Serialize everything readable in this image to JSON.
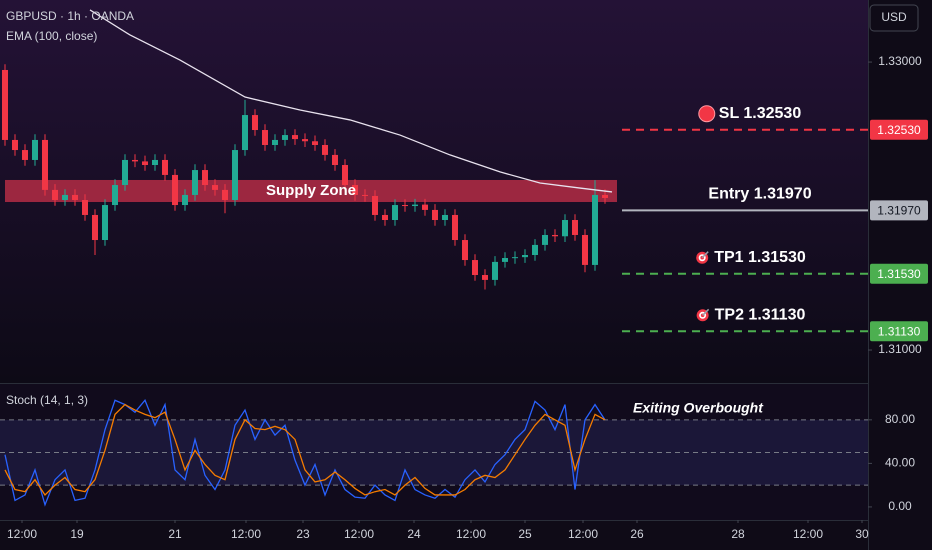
{
  "chart_data": [
    {
      "type": "candlestick",
      "title": "GBPUSD · 1h · OANDA",
      "currency": "USD",
      "x": [
        0,
        1,
        2,
        3,
        4,
        5,
        6,
        7,
        8,
        9,
        10,
        11,
        12,
        13,
        14,
        15,
        16,
        17,
        18,
        19,
        20,
        21,
        22,
        23,
        24,
        25,
        26,
        27,
        28,
        29,
        30,
        31,
        32,
        33,
        34,
        35,
        36,
        37,
        38,
        39,
        40,
        41,
        42,
        43,
        44,
        45,
        46,
        47,
        48,
        49,
        50,
        51,
        52,
        53,
        54,
        55,
        56,
        57,
        58,
        59,
        60
      ],
      "open": [
        1.32945,
        1.32459,
        1.32389,
        1.3232,
        1.32459,
        1.32112,
        1.32042,
        1.32077,
        1.32042,
        1.31938,
        1.31764,
        1.32007,
        1.32146,
        1.3232,
        1.3231,
        1.32285,
        1.3232,
        1.32216,
        1.32007,
        1.32077,
        1.3225,
        1.32146,
        1.32112,
        1.32042,
        1.32389,
        1.32632,
        1.32528,
        1.32424,
        1.32459,
        1.32493,
        1.32465,
        1.3245,
        1.32424,
        1.32355,
        1.32285,
        1.32146,
        1.32077,
        1.3207,
        1.31938,
        1.31903,
        1.32007,
        1.32,
        1.3201,
        1.31973,
        1.31903,
        1.31938,
        1.31764,
        1.31625,
        1.31521,
        1.31487,
        1.31612,
        1.31639,
        1.31645,
        1.3166,
        1.3173,
        1.31799,
        1.3179,
        1.31903,
        1.31799,
        1.31591,
        1.32077
      ],
      "high": [
        1.32985,
        1.32499,
        1.32429,
        1.32499,
        1.32499,
        1.32152,
        1.32117,
        1.32117,
        1.32082,
        1.31978,
        1.32047,
        1.32186,
        1.3236,
        1.3236,
        1.3235,
        1.3236,
        1.3236,
        1.32256,
        1.32117,
        1.3229,
        1.3229,
        1.32186,
        1.32152,
        1.32429,
        1.32737,
        1.32672,
        1.32568,
        1.32499,
        1.32533,
        1.32533,
        1.32505,
        1.3249,
        1.32464,
        1.32395,
        1.32325,
        1.32186,
        1.32117,
        1.3211,
        1.31978,
        1.32047,
        1.32047,
        1.3205,
        1.3205,
        1.32013,
        1.31978,
        1.31978,
        1.31804,
        1.31665,
        1.31561,
        1.31652,
        1.31679,
        1.31685,
        1.317,
        1.3177,
        1.31839,
        1.31839,
        1.31943,
        1.31943,
        1.31839,
        1.3218,
        1.32117
      ],
      "low": [
        1.32419,
        1.32349,
        1.3228,
        1.3228,
        1.32072,
        1.32002,
        1.32002,
        1.32002,
        1.31898,
        1.3166,
        1.31724,
        1.31967,
        1.32106,
        1.3227,
        1.32245,
        1.32245,
        1.32176,
        1.31967,
        1.31967,
        1.32037,
        1.32106,
        1.32072,
        1.3195,
        1.32002,
        1.32349,
        1.32488,
        1.32384,
        1.32384,
        1.32419,
        1.32425,
        1.3241,
        1.32384,
        1.32315,
        1.32245,
        1.32106,
        1.32037,
        1.3203,
        1.31898,
        1.31863,
        1.31863,
        1.3196,
        1.3196,
        1.31933,
        1.31863,
        1.31863,
        1.31724,
        1.31585,
        1.31481,
        1.3142,
        1.31447,
        1.31572,
        1.31599,
        1.31605,
        1.3162,
        1.3169,
        1.3175,
        1.3175,
        1.31759,
        1.3154,
        1.31551,
        1.32016
      ],
      "close": [
        1.32459,
        1.32389,
        1.3232,
        1.32459,
        1.32112,
        1.32042,
        1.32077,
        1.32042,
        1.31938,
        1.31764,
        1.32007,
        1.32146,
        1.3232,
        1.3231,
        1.32285,
        1.3232,
        1.32216,
        1.32007,
        1.32077,
        1.3225,
        1.32146,
        1.32112,
        1.32042,
        1.32389,
        1.32632,
        1.32528,
        1.32424,
        1.32459,
        1.32493,
        1.32465,
        1.3245,
        1.32424,
        1.32355,
        1.32285,
        1.32146,
        1.32077,
        1.3207,
        1.31938,
        1.31903,
        1.32007,
        1.32,
        1.3201,
        1.31973,
        1.31903,
        1.31938,
        1.31764,
        1.31625,
        1.31521,
        1.31487,
        1.31612,
        1.31639,
        1.31645,
        1.3166,
        1.3173,
        1.31799,
        1.3179,
        1.31903,
        1.31799,
        1.31591,
        1.32077,
        1.32056
      ],
      "up_color": "#22ab94",
      "down_color": "#f23645",
      "series": [
        {
          "name": "EMA (100, close)",
          "color": "#e8e2ee",
          "x": [
            8.5,
            12.5,
            17.5,
            24,
            29.5,
            34.5,
            39.5,
            44.5,
            49.5,
            53.5,
            57.5,
            60.7
          ],
          "values": [
            1.33362,
            1.33188,
            1.33014,
            1.32757,
            1.32667,
            1.32598,
            1.32493,
            1.32355,
            1.32237,
            1.3216,
            1.32125,
            1.32098
          ]
        }
      ],
      "zone": {
        "label": "Supply Zone",
        "top": 1.32181,
        "bottom": 1.32028,
        "color": "#c8304a"
      },
      "levels": [
        {
          "label": "SL 1.32530",
          "value": 1.3253,
          "badge": "1.32530",
          "color": "#f23645",
          "style": "dashed"
        },
        {
          "label": "Entry 1.31970",
          "value": 1.3197,
          "badge": "1.31970",
          "color": "#b2b5be",
          "style": "solid"
        },
        {
          "label": "TP1 1.31530",
          "value": 1.3153,
          "badge": "1.31530",
          "color": "#4caf50",
          "style": "dashed"
        },
        {
          "label": "TP2 1.31130",
          "value": 1.3113,
          "badge": "1.31130",
          "color": "#4caf50",
          "style": "dashed"
        }
      ],
      "xlim": [
        -0.5,
        86.3
      ],
      "xticks": [
        {
          "value": 1.7,
          "label": "12:00"
        },
        {
          "value": 7.2,
          "label": "19"
        },
        {
          "value": 17,
          "label": "21"
        },
        {
          "value": 24.1,
          "label": "12:00"
        },
        {
          "value": 29.8,
          "label": "23"
        },
        {
          "value": 35.4,
          "label": "12:00"
        },
        {
          "value": 40.9,
          "label": "24"
        },
        {
          "value": 46.6,
          "label": "12:00"
        },
        {
          "value": 52,
          "label": "25"
        },
        {
          "value": 57.8,
          "label": "12:00"
        },
        {
          "value": 63.2,
          "label": "26"
        },
        {
          "value": 73.3,
          "label": "28"
        },
        {
          "value": 80.3,
          "label": "12:00"
        },
        {
          "value": 85.7,
          "label": "30"
        }
      ],
      "ylim": [
        1.30771,
        1.33431
      ],
      "yticks": [
        {
          "value": 1.33,
          "label": "1.33000"
        },
        {
          "value": 1.31,
          "label": "1.31000"
        }
      ]
    },
    {
      "type": "line",
      "title": "Stoch (14, 1, 3)",
      "annotation": "Exiting Overbought",
      "series": [
        {
          "color": "#2962ff",
          "values": [
            48,
            6,
            11,
            34,
            2,
            25,
            34,
            6,
            8,
            34,
            71,
            98,
            94,
            87,
            98,
            75,
            94,
            34,
            25,
            62,
            29,
            16,
            34,
            75,
            89,
            62,
            80,
            66,
            75,
            43,
            20,
            39,
            11,
            34,
            16,
            9,
            8,
            20,
            11,
            6,
            34,
            16,
            11,
            8,
            16,
            9,
            25,
            34,
            23,
            39,
            48,
            62,
            71,
            97,
            89,
            71,
            94,
            16,
            80,
            94,
            80
          ]
        },
        {
          "color": "#f57c00",
          "values": [
            34,
            16,
            14,
            25,
            11,
            20,
            27,
            16,
            14,
            25,
            52,
            85,
            94,
            89,
            85,
            82,
            87,
            62,
            34,
            52,
            39,
            29,
            25,
            62,
            80,
            72,
            71,
            74,
            71,
            62,
            34,
            23,
            25,
            32,
            25,
            17,
            11,
            14,
            16,
            11,
            20,
            27,
            17,
            11,
            11,
            11,
            16,
            25,
            29,
            27,
            34,
            48,
            62,
            75,
            85,
            80,
            75,
            34,
            62,
            85,
            80
          ]
        }
      ],
      "levels": [
        80,
        50,
        20
      ],
      "ylim": [
        -12,
        112
      ],
      "yticks": [
        {
          "value": 80,
          "label": "80.00"
        },
        {
          "value": 40,
          "label": "40.00"
        },
        {
          "value": 0,
          "label": "0.00"
        }
      ]
    }
  ]
}
